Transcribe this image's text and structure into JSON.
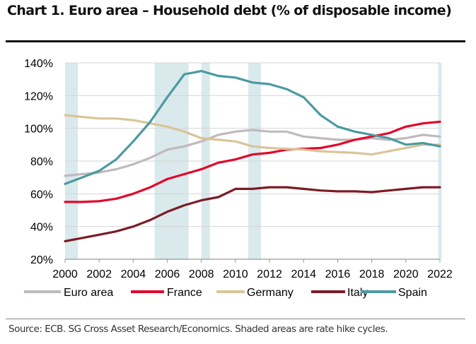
{
  "header": {
    "title": "Chart 1. Euro area – Household debt (% of disposable income)"
  },
  "footer": {
    "source": "Source: ECB. SG Cross Asset Research/Economics. Shaded areas are rate hike cycles."
  },
  "chart_data": {
    "type": "line",
    "title": "Chart 1. Euro area – Household debt (% of disposable income)",
    "xlabel": "",
    "ylabel": "% of disposable income",
    "xlim": [
      2000,
      2022
    ],
    "ylim": [
      20,
      140
    ],
    "x_ticks": [
      "2000",
      "2002",
      "2004",
      "2006",
      "2008",
      "2010",
      "2012",
      "2014",
      "2016",
      "2018",
      "2020",
      "2022"
    ],
    "y_ticks": [
      "20%",
      "40%",
      "60%",
      "80%",
      "100%",
      "120%",
      "140%"
    ],
    "grid": "horizontal",
    "legend_position": "bottom",
    "shaded_periods": [
      [
        2000.0,
        2000.75
      ],
      [
        2005.25,
        2007.25
      ],
      [
        2008.0,
        2008.5
      ],
      [
        2010.75,
        2011.5
      ],
      [
        2021.9,
        2022.1
      ]
    ],
    "shaded_label": "rate hike cycles",
    "shade_color": "#dae9ec",
    "x": [
      2000,
      2001,
      2002,
      2003,
      2004,
      2005,
      2006,
      2007,
      2008,
      2009,
      2010,
      2011,
      2012,
      2013,
      2014,
      2015,
      2016,
      2017,
      2018,
      2019,
      2020,
      2021,
      2022
    ],
    "series": [
      {
        "name": "Euro area",
        "color": "#c0b9bd",
        "values": [
          71,
          72,
          73,
          75,
          78,
          82,
          87,
          89,
          92,
          96,
          98,
          99,
          98,
          98,
          95,
          94,
          93,
          93,
          94,
          93,
          94,
          96,
          95
        ]
      },
      {
        "name": "France",
        "color": "#e3062b",
        "values": [
          55,
          55,
          55.5,
          57,
          60,
          64,
          69,
          72,
          75,
          79,
          81,
          84,
          85,
          87,
          87.5,
          88,
          90,
          93,
          95,
          97,
          101,
          103,
          104
        ]
      },
      {
        "name": "Germany",
        "color": "#d9c597",
        "values": [
          108,
          107,
          106,
          106,
          105,
          103,
          101,
          98,
          94,
          93,
          92,
          89,
          88,
          87.5,
          87,
          86,
          85.5,
          85,
          84,
          86,
          88,
          90,
          90
        ]
      },
      {
        "name": "Italy",
        "color": "#7b1c26",
        "values": [
          31,
          33,
          35,
          37,
          40,
          44,
          49,
          53,
          56,
          58,
          63,
          63,
          64,
          64,
          63,
          62,
          61.5,
          61.5,
          61,
          62,
          63,
          64,
          64
        ]
      },
      {
        "name": "Spain",
        "color": "#4a9aa0",
        "values": [
          66,
          70,
          74,
          81,
          92,
          104,
          119,
          133,
          135,
          132,
          131,
          128,
          127,
          124,
          119,
          108,
          101,
          98,
          96,
          94,
          90,
          91,
          89
        ]
      }
    ]
  }
}
